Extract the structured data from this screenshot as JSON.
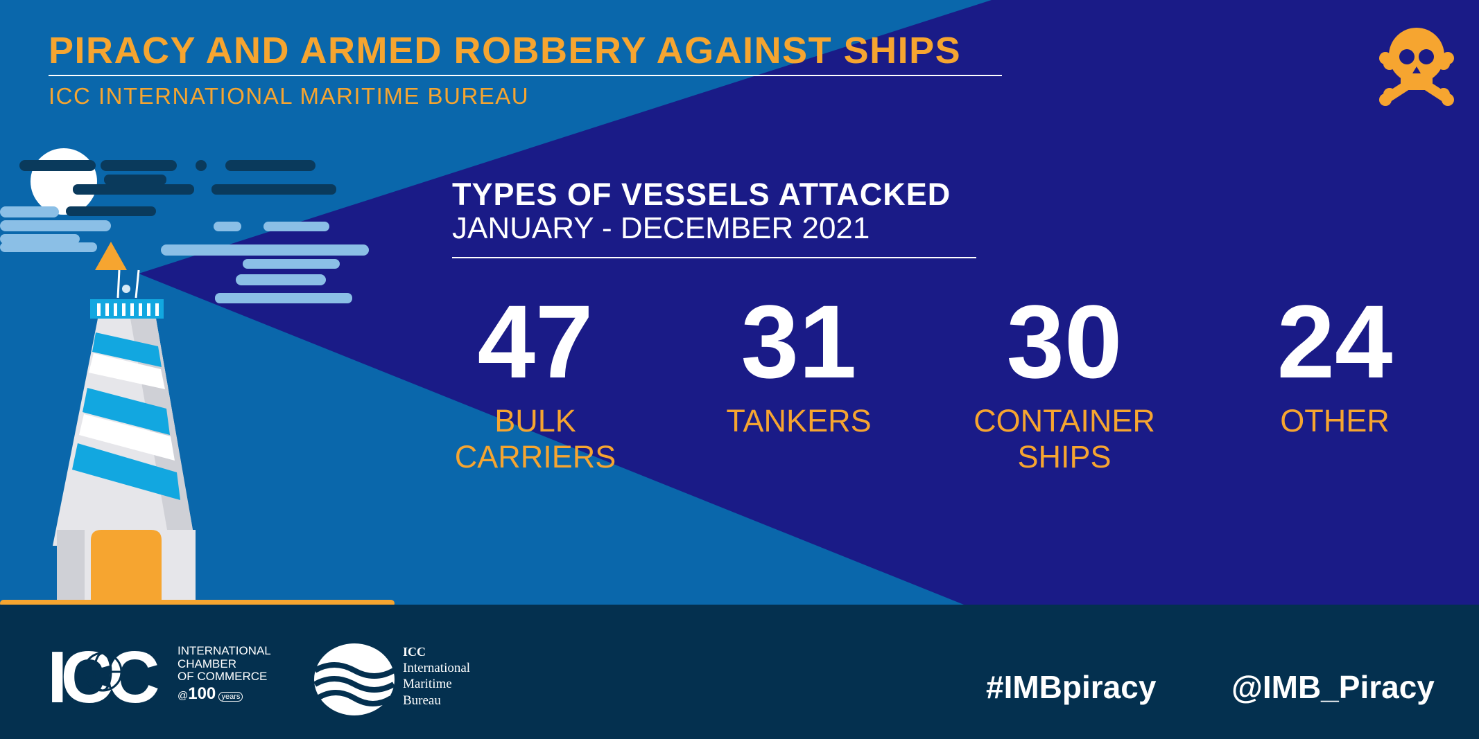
{
  "colors": {
    "background_navy": "#1a1b87",
    "light_blue": "#0a67ab",
    "accent_orange": "#f6a530",
    "footer_dark": "#04304f",
    "text_white": "#ffffff"
  },
  "header": {
    "title": "PIRACY AND ARMED ROBBERY AGAINST SHIPS",
    "subtitle": "ICC INTERNATIONAL MARITIME BUREAU",
    "corner_icon": "skull-and-crossbones-icon"
  },
  "section": {
    "title": "TYPES OF VESSELS ATTACKED",
    "period": "JANUARY - DECEMBER 2021"
  },
  "stats": [
    {
      "value": "47",
      "label_lines": [
        "BULK",
        "CARRIERS"
      ]
    },
    {
      "value": "31",
      "label_lines": [
        "TANKERS"
      ]
    },
    {
      "value": "30",
      "label_lines": [
        "CONTAINER",
        "SHIPS"
      ]
    },
    {
      "value": "24",
      "label_lines": [
        "OTHER"
      ]
    }
  ],
  "illustration": {
    "lighthouse_icon": "lighthouse-icon",
    "moon_icon": "moon-icon",
    "clouds_icon": "clouds-icon"
  },
  "footer": {
    "icc_logo": {
      "letters": "ICC",
      "lines": [
        "INTERNATIONAL",
        "CHAMBER",
        "OF COMMERCE"
      ],
      "anniversary_number": "100",
      "anniversary_word": "years",
      "at_sign": "@"
    },
    "imb_logo": {
      "lines": [
        "ICC",
        "International",
        "Maritime",
        "Bureau"
      ]
    },
    "hashtag": "#IMBpiracy",
    "handle": "@IMB_Piracy"
  }
}
